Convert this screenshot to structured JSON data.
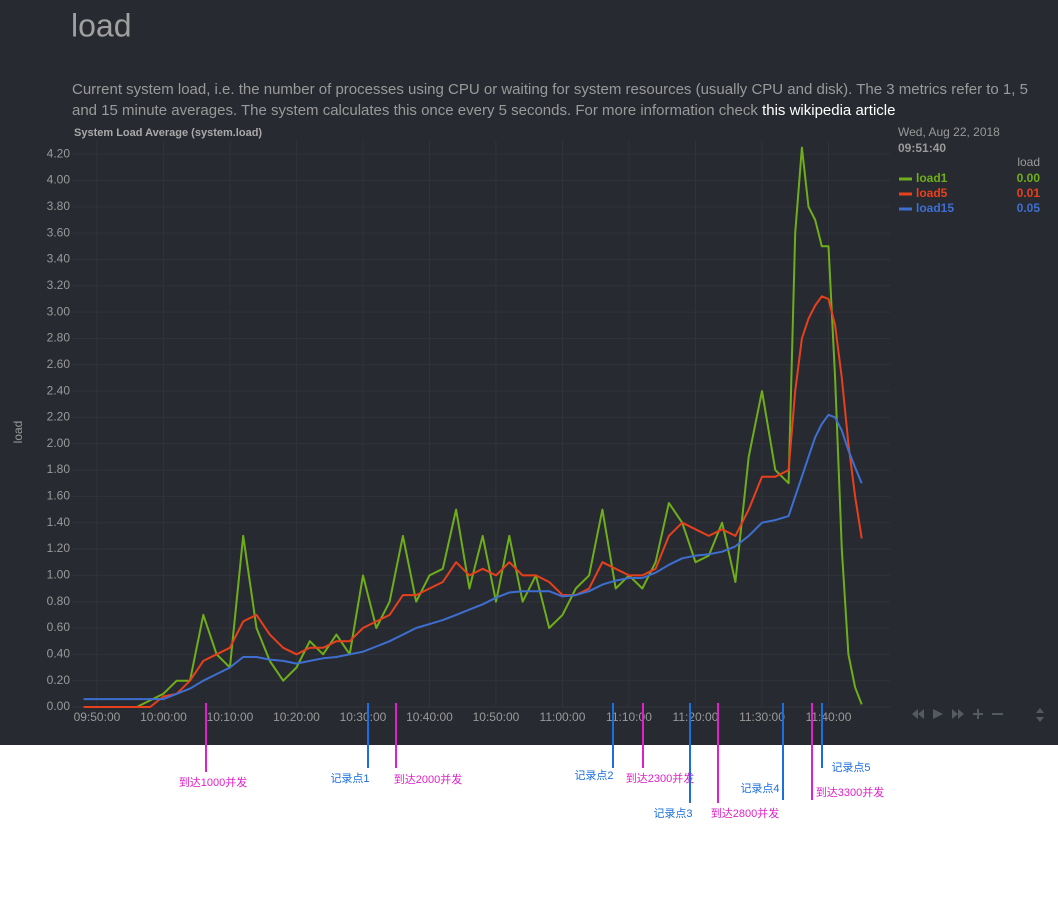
{
  "header": {
    "title": "load",
    "description": "Current system load, i.e. the number of processes using CPU or waiting for system resources (usually CPU and disk). The 3 metrics refer to 1, 5 and 15 minute averages. The system calculates this once every 5 seconds. For more information check ",
    "link": "this wikipedia article"
  },
  "chart_data": {
    "type": "line",
    "title": "System Load Average (system.load)",
    "y_label": "load",
    "x": [
      "09:48:00",
      "09:50:00",
      "09:52:00",
      "09:54:00",
      "09:56:00",
      "09:58:00",
      "10:00:00",
      "10:02:00",
      "10:04:00",
      "10:06:00",
      "10:08:00",
      "10:10:00",
      "10:12:00",
      "10:14:00",
      "10:16:00",
      "10:18:00",
      "10:20:00",
      "10:22:00",
      "10:24:00",
      "10:26:00",
      "10:28:00",
      "10:30:00",
      "10:32:00",
      "10:34:00",
      "10:36:00",
      "10:38:00",
      "10:40:00",
      "10:42:00",
      "10:44:00",
      "10:46:00",
      "10:48:00",
      "10:50:00",
      "10:52:00",
      "10:54:00",
      "10:56:00",
      "10:58:00",
      "11:00:00",
      "11:02:00",
      "11:04:00",
      "11:06:00",
      "11:08:00",
      "11:10:00",
      "11:12:00",
      "11:14:00",
      "11:16:00",
      "11:18:00",
      "11:20:00",
      "11:22:00",
      "11:24:00",
      "11:26:00",
      "11:28:00",
      "11:30:00",
      "11:32:00",
      "11:34:00",
      "11:35:00",
      "11:36:00",
      "11:37:00",
      "11:38:00",
      "11:39:00",
      "11:40:00",
      "11:41:00",
      "11:42:00",
      "11:43:00",
      "11:44:00",
      "11:45:00"
    ],
    "series": [
      {
        "name": "load1",
        "color": "#6fae1a",
        "values": [
          0,
          0,
          0,
          0,
          0,
          0.05,
          0.1,
          0.2,
          0.2,
          0.7,
          0.4,
          0.3,
          1.3,
          0.6,
          0.35,
          0.2,
          0.3,
          0.5,
          0.4,
          0.55,
          0.4,
          1.0,
          0.6,
          0.8,
          1.3,
          0.8,
          1.0,
          1.05,
          1.5,
          0.9,
          1.3,
          0.8,
          1.3,
          0.8,
          1.0,
          0.6,
          0.7,
          0.9,
          1.0,
          1.5,
          0.9,
          1.0,
          0.9,
          1.1,
          1.55,
          1.4,
          1.1,
          1.15,
          1.4,
          0.95,
          1.9,
          2.4,
          1.8,
          1.7,
          3.6,
          4.25,
          3.8,
          3.7,
          3.5,
          3.5,
          2.5,
          1.2,
          0.4,
          0.15,
          0.02
        ]
      },
      {
        "name": "load5",
        "color": "#e8401c",
        "values": [
          0,
          0,
          0,
          0,
          0,
          0,
          0.08,
          0.1,
          0.2,
          0.35,
          0.4,
          0.45,
          0.65,
          0.7,
          0.55,
          0.45,
          0.4,
          0.45,
          0.45,
          0.5,
          0.5,
          0.6,
          0.65,
          0.7,
          0.85,
          0.85,
          0.9,
          0.95,
          1.1,
          1.0,
          1.05,
          1.0,
          1.1,
          1.0,
          1.0,
          0.95,
          0.85,
          0.85,
          0.9,
          1.1,
          1.05,
          1.0,
          1.0,
          1.05,
          1.3,
          1.4,
          1.35,
          1.3,
          1.35,
          1.3,
          1.5,
          1.75,
          1.75,
          1.8,
          2.4,
          2.8,
          2.95,
          3.05,
          3.12,
          3.1,
          2.9,
          2.5,
          2.0,
          1.6,
          1.28
        ]
      },
      {
        "name": "load15",
        "color": "#3e6fd0",
        "values": [
          0.06,
          0.06,
          0.06,
          0.06,
          0.06,
          0.06,
          0.06,
          0.1,
          0.14,
          0.2,
          0.25,
          0.3,
          0.38,
          0.38,
          0.36,
          0.35,
          0.33,
          0.35,
          0.37,
          0.38,
          0.4,
          0.42,
          0.46,
          0.5,
          0.55,
          0.6,
          0.63,
          0.66,
          0.7,
          0.74,
          0.78,
          0.83,
          0.87,
          0.88,
          0.88,
          0.88,
          0.84,
          0.85,
          0.88,
          0.93,
          0.96,
          0.98,
          0.98,
          1.02,
          1.08,
          1.13,
          1.15,
          1.16,
          1.18,
          1.22,
          1.3,
          1.4,
          1.42,
          1.45,
          1.6,
          1.75,
          1.9,
          2.05,
          2.15,
          2.22,
          2.2,
          2.1,
          1.95,
          1.82,
          1.7
        ]
      }
    ],
    "xlim": [
      "09:46:15",
      "11:49:15"
    ],
    "xticks": [
      "09:50:00",
      "10:00:00",
      "10:10:00",
      "10:20:00",
      "10:30:00",
      "10:40:00",
      "10:50:00",
      "11:00:00",
      "11:10:00",
      "11:20:00",
      "11:30:00",
      "11:40:00"
    ],
    "ylim": [
      0,
      4.3
    ],
    "yticks": [
      {
        "value": 0,
        "label": "0.00"
      },
      {
        "value": 0.2,
        "label": "0.20"
      },
      {
        "value": 0.4,
        "label": "0.40"
      },
      {
        "value": 0.6,
        "label": "0.60"
      },
      {
        "value": 0.8,
        "label": "0.80"
      },
      {
        "value": 1,
        "label": "1.00"
      },
      {
        "value": 1.2,
        "label": "1.20"
      },
      {
        "value": 1.4,
        "label": "1.40"
      },
      {
        "value": 1.6,
        "label": "1.60"
      },
      {
        "value": 1.8,
        "label": "1.80"
      },
      {
        "value": 2,
        "label": "2.00"
      },
      {
        "value": 2.2,
        "label": "2.20"
      },
      {
        "value": 2.4,
        "label": "2.40"
      },
      {
        "value": 2.6,
        "label": "2.60"
      },
      {
        "value": 2.8,
        "label": "2.80"
      },
      {
        "value": 3,
        "label": "3.00"
      },
      {
        "value": 3.2,
        "label": "3.20"
      },
      {
        "value": 3.4,
        "label": "3.40"
      },
      {
        "value": 3.6,
        "label": "3.60"
      },
      {
        "value": 3.8,
        "label": "3.80"
      },
      {
        "value": 4,
        "label": "4.00"
      },
      {
        "value": 4.2,
        "label": "4.20"
      }
    ],
    "grid": true,
    "legend": {
      "date": "Wed, Aug 22, 2018",
      "time": "09:51:40",
      "unit": "load",
      "values": [
        "0.00",
        "0.01",
        "0.05"
      ]
    }
  },
  "annotations": [
    {
      "text": "到达1000并发",
      "color": "#e020c8"
    },
    {
      "text": "记录点1",
      "color": "#1a6ee0"
    },
    {
      "text": "到达2000并发",
      "color": "#e020c8"
    },
    {
      "text": "记录点2",
      "color": "#1a6ee0"
    },
    {
      "text": "到达2300并发",
      "color": "#e020c8"
    },
    {
      "text": "记录点3",
      "color": "#1a6ee0"
    },
    {
      "text": "到达2800并发",
      "color": "#e020c8"
    },
    {
      "text": "记录点4",
      "color": "#1a6ee0"
    },
    {
      "text": "到达3300并发",
      "color": "#e020c8"
    },
    {
      "text": "记录点5",
      "color": "#1a6ee0"
    }
  ]
}
